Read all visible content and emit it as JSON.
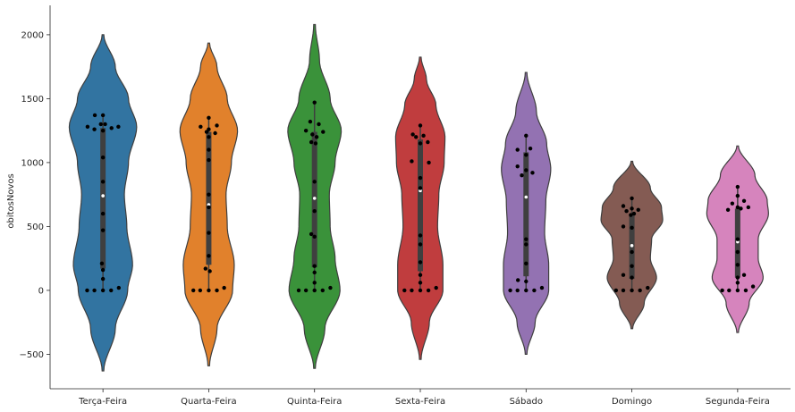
{
  "chart_data": {
    "type": "violin",
    "ylabel": "obitosNovos",
    "xlabel": "",
    "ylim": [
      -770,
      2230
    ],
    "yticks": [
      -500,
      0,
      500,
      1000,
      1500,
      2000
    ],
    "ytick_labels": [
      "−500",
      "0",
      "500",
      "1000",
      "1500",
      "2000"
    ],
    "categories": [
      "Terça-Feira",
      "Quarta-Feira",
      "Quinta-Feira",
      "Sexta-Feira",
      "Sábado",
      "Domingo",
      "Segunda-Feira"
    ],
    "colors": [
      "#3274a1",
      "#e1812c",
      "#3a923a",
      "#c03d3e",
      "#9372b2",
      "#845b53",
      "#d684bd"
    ],
    "violins": [
      {
        "category": "Terça-Feira",
        "extent": [
          -630,
          2000
        ],
        "median": 740,
        "q1": 170,
        "q3": 1270,
        "whisker": [
          0,
          1370
        ],
        "profile": [
          [
            -630,
            0.02
          ],
          [
            -300,
            0.3
          ],
          [
            0,
            0.6
          ],
          [
            200,
            0.72
          ],
          [
            500,
            0.58
          ],
          [
            750,
            0.52
          ],
          [
            1000,
            0.62
          ],
          [
            1280,
            0.82
          ],
          [
            1500,
            0.62
          ],
          [
            1750,
            0.3
          ],
          [
            2000,
            0.02
          ]
        ],
        "points": [
          [
            1280,
            -0.72
          ],
          [
            1280,
            0.72
          ],
          [
            1370,
            -0.38
          ],
          [
            1370,
            0.0
          ],
          [
            1300,
            -0.1
          ],
          [
            1300,
            0.1
          ],
          [
            1260,
            -0.4
          ],
          [
            1270,
            0.4
          ],
          [
            1250,
            0.0
          ],
          [
            1040,
            0.0
          ],
          [
            850,
            0.0
          ],
          [
            600,
            0.0
          ],
          [
            470,
            0.0
          ],
          [
            210,
            -0.05
          ],
          [
            160,
            0.0
          ],
          [
            90,
            0.0
          ],
          [
            0,
            -0.74
          ],
          [
            0,
            -0.4
          ],
          [
            0,
            0.0
          ],
          [
            0,
            0.38
          ],
          [
            20,
            0.74
          ]
        ]
      },
      {
        "category": "Quarta-Feira",
        "extent": [
          -590,
          1935
        ],
        "median": 670,
        "q1": 200,
        "q3": 1240,
        "whisker": [
          0,
          1350
        ],
        "profile": [
          [
            -590,
            0.02
          ],
          [
            -300,
            0.2
          ],
          [
            0,
            0.58
          ],
          [
            200,
            0.62
          ],
          [
            500,
            0.45
          ],
          [
            750,
            0.42
          ],
          [
            1000,
            0.55
          ],
          [
            1250,
            0.7
          ],
          [
            1500,
            0.45
          ],
          [
            1750,
            0.2
          ],
          [
            1935,
            0.02
          ]
        ],
        "points": [
          [
            1280,
            -0.38
          ],
          [
            1350,
            0.0
          ],
          [
            1290,
            0.38
          ],
          [
            1260,
            0.0
          ],
          [
            1240,
            -0.1
          ],
          [
            1230,
            0.3
          ],
          [
            1200,
            0.0
          ],
          [
            1100,
            0.0
          ],
          [
            1020,
            0.0
          ],
          [
            750,
            0.0
          ],
          [
            650,
            0.0
          ],
          [
            450,
            0.0
          ],
          [
            270,
            0.0
          ],
          [
            170,
            -0.15
          ],
          [
            150,
            0.05
          ],
          [
            0,
            -0.72
          ],
          [
            0,
            -0.4
          ],
          [
            0,
            0.0
          ],
          [
            0,
            0.38
          ],
          [
            20,
            0.72
          ]
        ]
      },
      {
        "category": "Quinta-Feira",
        "extent": [
          -610,
          2080
        ],
        "median": 720,
        "q1": 180,
        "q3": 1240,
        "whisker": [
          0,
          1470
        ],
        "profile": [
          [
            -610,
            0.02
          ],
          [
            -300,
            0.25
          ],
          [
            0,
            0.62
          ],
          [
            250,
            0.5
          ],
          [
            500,
            0.38
          ],
          [
            750,
            0.36
          ],
          [
            1000,
            0.5
          ],
          [
            1250,
            0.65
          ],
          [
            1500,
            0.38
          ],
          [
            1800,
            0.12
          ],
          [
            2080,
            0.02
          ]
        ],
        "points": [
          [
            1470,
            0.0
          ],
          [
            1320,
            -0.2
          ],
          [
            1300,
            0.2
          ],
          [
            1250,
            -0.4
          ],
          [
            1240,
            0.4
          ],
          [
            1220,
            -0.1
          ],
          [
            1200,
            0.1
          ],
          [
            1160,
            -0.15
          ],
          [
            1150,
            0.05
          ],
          [
            850,
            0.0
          ],
          [
            620,
            0.0
          ],
          [
            440,
            -0.15
          ],
          [
            420,
            0.0
          ],
          [
            190,
            0.0
          ],
          [
            140,
            0.0
          ],
          [
            60,
            0.0
          ],
          [
            0,
            -0.74
          ],
          [
            0,
            -0.4
          ],
          [
            0,
            0.0
          ],
          [
            0,
            0.38
          ],
          [
            20,
            0.74
          ]
        ]
      },
      {
        "category": "Sexta-Feira",
        "extent": [
          -540,
          1825
        ],
        "median": 780,
        "q1": 150,
        "q3": 1180,
        "whisker": [
          0,
          1290
        ],
        "profile": [
          [
            -540,
            0.02
          ],
          [
            -250,
            0.22
          ],
          [
            0,
            0.55
          ],
          [
            200,
            0.55
          ],
          [
            500,
            0.42
          ],
          [
            750,
            0.45
          ],
          [
            1000,
            0.58
          ],
          [
            1200,
            0.6
          ],
          [
            1450,
            0.38
          ],
          [
            1650,
            0.15
          ],
          [
            1825,
            0.02
          ]
        ],
        "points": [
          [
            1290,
            0.0
          ],
          [
            1220,
            -0.35
          ],
          [
            1200,
            -0.2
          ],
          [
            1210,
            0.15
          ],
          [
            1160,
            0.35
          ],
          [
            1150,
            0.0
          ],
          [
            1010,
            -0.4
          ],
          [
            1000,
            0.4
          ],
          [
            880,
            0.0
          ],
          [
            800,
            0.0
          ],
          [
            430,
            0.0
          ],
          [
            360,
            0.0
          ],
          [
            220,
            0.0
          ],
          [
            120,
            0.0
          ],
          [
            60,
            0.0
          ],
          [
            0,
            -0.74
          ],
          [
            0,
            -0.4
          ],
          [
            0,
            0.0
          ],
          [
            0,
            0.38
          ],
          [
            20,
            0.74
          ]
        ]
      },
      {
        "category": "Sábado",
        "extent": [
          -500,
          1705
        ],
        "median": 730,
        "q1": 110,
        "q3": 1080,
        "whisker": [
          0,
          1210
        ],
        "profile": [
          [
            -500,
            0.02
          ],
          [
            -250,
            0.22
          ],
          [
            0,
            0.55
          ],
          [
            200,
            0.55
          ],
          [
            450,
            0.45
          ],
          [
            700,
            0.48
          ],
          [
            950,
            0.6
          ],
          [
            1150,
            0.5
          ],
          [
            1400,
            0.25
          ],
          [
            1705,
            0.02
          ]
        ],
        "points": [
          [
            1210,
            0.0
          ],
          [
            1100,
            -0.4
          ],
          [
            1110,
            0.2
          ],
          [
            1060,
            0.0
          ],
          [
            970,
            -0.4
          ],
          [
            940,
            0.0
          ],
          [
            920,
            0.3
          ],
          [
            900,
            -0.2
          ],
          [
            400,
            0.0
          ],
          [
            360,
            0.0
          ],
          [
            210,
            0.0
          ],
          [
            80,
            -0.38
          ],
          [
            70,
            0.0
          ],
          [
            0,
            -0.74
          ],
          [
            0,
            -0.4
          ],
          [
            0,
            0.0
          ],
          [
            0,
            0.38
          ],
          [
            20,
            0.74
          ]
        ]
      },
      {
        "category": "Domingo",
        "extent": [
          -300,
          1010
        ],
        "median": 350,
        "q1": 90,
        "q3": 600,
        "whisker": [
          0,
          720
        ],
        "profile": [
          [
            -300,
            0.02
          ],
          [
            -100,
            0.3
          ],
          [
            100,
            0.6
          ],
          [
            250,
            0.45
          ],
          [
            400,
            0.48
          ],
          [
            550,
            0.75
          ],
          [
            650,
            0.72
          ],
          [
            800,
            0.45
          ],
          [
            1010,
            0.02
          ]
        ],
        "points": [
          [
            720,
            0.0
          ],
          [
            660,
            -0.4
          ],
          [
            640,
            0.0
          ],
          [
            630,
            0.3
          ],
          [
            620,
            -0.25
          ],
          [
            600,
            0.1
          ],
          [
            590,
            -0.05
          ],
          [
            500,
            -0.4
          ],
          [
            490,
            0.0
          ],
          [
            300,
            0.0
          ],
          [
            190,
            0.0
          ],
          [
            120,
            -0.4
          ],
          [
            100,
            0.0
          ],
          [
            0,
            -0.74
          ],
          [
            0,
            -0.4
          ],
          [
            0,
            0.0
          ],
          [
            0,
            0.38
          ],
          [
            20,
            0.74
          ]
        ]
      },
      {
        "category": "Segunda-Feira",
        "extent": [
          -330,
          1130
        ],
        "median": 380,
        "q1": 100,
        "q3": 640,
        "whisker": [
          0,
          810
        ],
        "profile": [
          [
            -330,
            0.02
          ],
          [
            -100,
            0.28
          ],
          [
            100,
            0.62
          ],
          [
            250,
            0.5
          ],
          [
            400,
            0.5
          ],
          [
            600,
            0.75
          ],
          [
            700,
            0.72
          ],
          [
            900,
            0.42
          ],
          [
            1130,
            0.02
          ]
        ],
        "points": [
          [
            810,
            0.0
          ],
          [
            740,
            0.0
          ],
          [
            700,
            0.3
          ],
          [
            680,
            -0.25
          ],
          [
            650,
            0.0
          ],
          [
            650,
            0.5
          ],
          [
            640,
            0.15
          ],
          [
            630,
            -0.45
          ],
          [
            400,
            0.0
          ],
          [
            300,
            0.0
          ],
          [
            200,
            0.0
          ],
          [
            120,
            0.3
          ],
          [
            100,
            0.0
          ],
          [
            60,
            0.0
          ],
          [
            0,
            -0.72
          ],
          [
            0,
            -0.4
          ],
          [
            0,
            0.0
          ],
          [
            0,
            0.38
          ],
          [
            30,
            0.72
          ]
        ]
      }
    ]
  }
}
